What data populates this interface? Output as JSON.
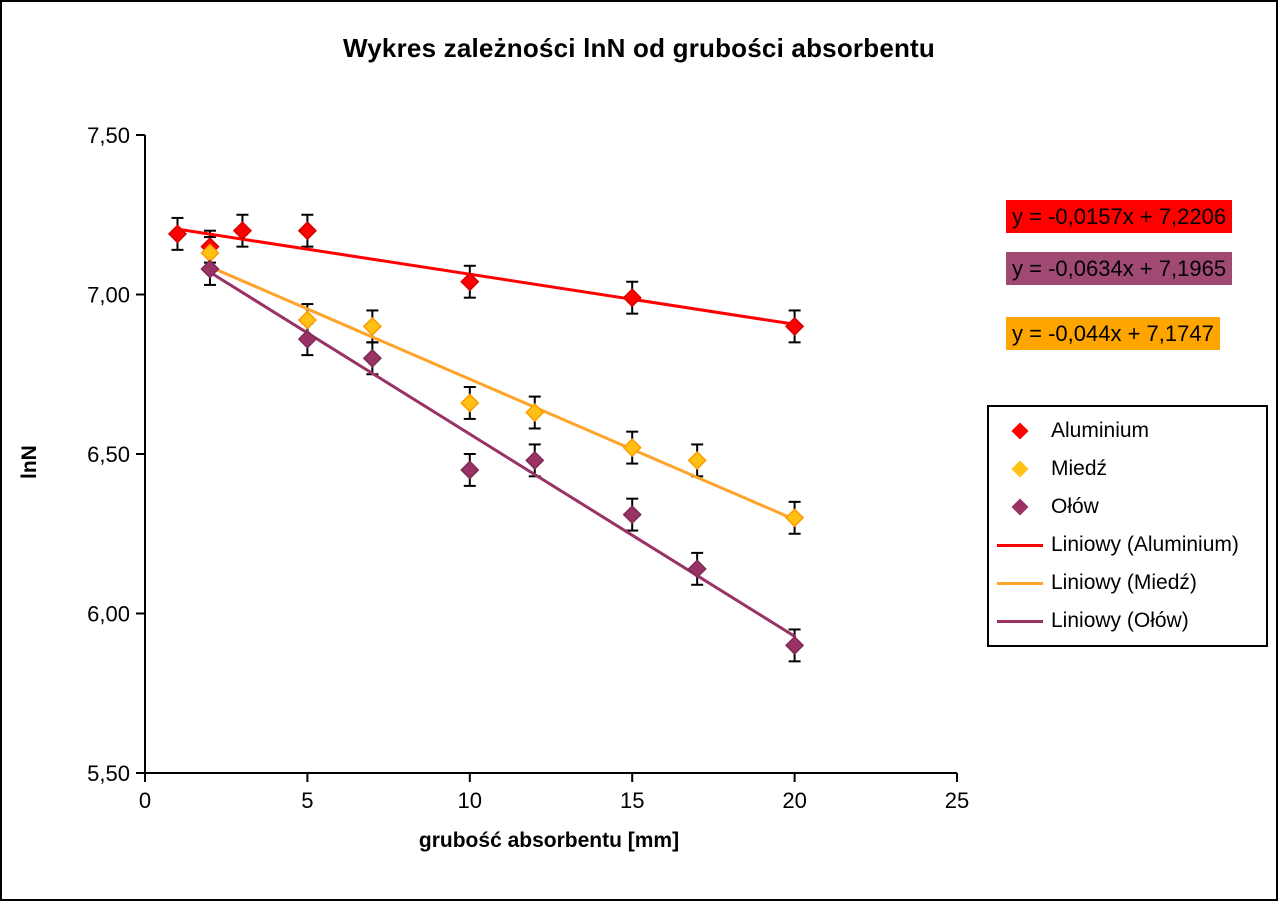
{
  "window": {
    "background": "#FFFFFF",
    "border_color": "#000000"
  },
  "chart_data": {
    "type": "scatter",
    "title": "Wykres zależności lnN od grubości absorbentu",
    "xlabel": "grubość absorbentu [mm]",
    "ylabel": "lnN",
    "xlim": [
      0,
      25
    ],
    "ylim": [
      5.5,
      7.5
    ],
    "x_ticks": [
      0,
      5,
      10,
      15,
      20,
      25
    ],
    "x_tick_labels": [
      "0",
      "5",
      "10",
      "15",
      "20",
      "25"
    ],
    "y_ticks": [
      7.5,
      7.0,
      6.5,
      6.0,
      5.5
    ],
    "y_tick_labels": [
      "7,50",
      "7,00",
      "6,50",
      "6,00",
      "5,50"
    ],
    "grid": false,
    "decimal_separator": ",",
    "error_bar_plus_minus": 0.05,
    "axis_color": "#000000",
    "series": [
      {
        "name": "Aluminium",
        "marker": "diamond",
        "color": "#FF0000",
        "marker_stroke": "#D40000",
        "x": [
          1,
          2,
          3,
          5,
          10,
          15,
          20
        ],
        "y": [
          7.19,
          7.15,
          7.2,
          7.2,
          7.04,
          6.99,
          6.9
        ]
      },
      {
        "name": "Miedź",
        "marker": "diamond",
        "color": "#FFC114",
        "marker_stroke": "#FF9A00",
        "x": [
          2,
          5,
          7,
          10,
          12,
          15,
          17,
          20
        ],
        "y": [
          7.13,
          6.92,
          6.9,
          6.66,
          6.63,
          6.52,
          6.48,
          6.3
        ]
      },
      {
        "name": "Ołów",
        "marker": "diamond",
        "color": "#993366",
        "marker_stroke": "#7D2A54",
        "x": [
          2,
          5,
          7,
          10,
          12,
          15,
          17,
          20
        ],
        "y": [
          7.08,
          6.86,
          6.8,
          6.45,
          6.48,
          6.31,
          6.14,
          5.9
        ]
      }
    ],
    "trendlines": [
      {
        "name": "Liniowy (Aluminium)",
        "series": "Aluminium",
        "slope": -0.0157,
        "intercept": 7.2206,
        "x_range": [
          1,
          20
        ],
        "color": "#FF0000"
      },
      {
        "name": "Liniowy (Miedź)",
        "series": "Miedź",
        "slope": -0.044,
        "intercept": 7.1747,
        "x_range": [
          2,
          20
        ],
        "color": "#FFA428"
      },
      {
        "name": "Liniowy (Ołów)",
        "series": "Ołów",
        "slope": -0.0634,
        "intercept": 7.1965,
        "x_range": [
          2,
          20
        ],
        "color": "#993366"
      }
    ],
    "equation_boxes": [
      {
        "text": "y = -0,0157x + 7,2206",
        "bg": "#FF0000",
        "series": "Aluminium"
      },
      {
        "text": "y = -0,0634x + 7,1965",
        "bg": "#A04A73",
        "series": "Ołów"
      },
      {
        "text": "y = -0,044x + 7,1747",
        "bg": "#FFA500",
        "series": "Miedź"
      }
    ],
    "legend": {
      "position": "right",
      "entries": [
        {
          "label": "Aluminium",
          "marker": "diamond",
          "color": "#FF0000"
        },
        {
          "label": "Miedź",
          "marker": "diamond",
          "color": "#FFC114"
        },
        {
          "label": "Ołów",
          "marker": "diamond",
          "color": "#993366"
        },
        {
          "label": "Liniowy (Aluminium)",
          "marker": "line",
          "color": "#FF0000"
        },
        {
          "label": "Liniowy (Miedź)",
          "marker": "line",
          "color": "#FFA428"
        },
        {
          "label": "Liniowy (Ołów)",
          "marker": "line",
          "color": "#993366"
        }
      ]
    }
  }
}
